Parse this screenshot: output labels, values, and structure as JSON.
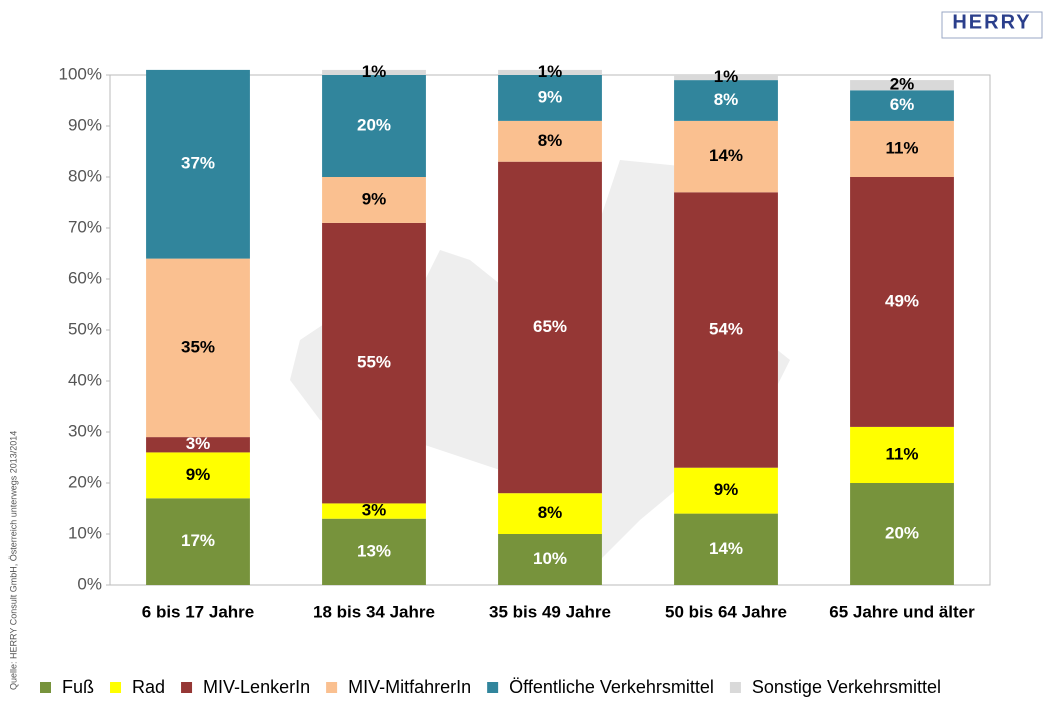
{
  "chart_data": {
    "type": "stacked_bar",
    "source": "Quelle: HERRY Consult GmbH, Österreich unterwegs 2013/2014",
    "logo": "HERRY",
    "categories": [
      "6 bis 17 Jahre",
      "18 bis 34 Jahre",
      "35 bis 49 Jahre",
      "50 bis 64 Jahre",
      "65 Jahre und älter"
    ],
    "series": [
      {
        "name": "Fuß",
        "color": "#77933c",
        "values": [
          17,
          13,
          10,
          14,
          20
        ],
        "value_labels": [
          "17%",
          "13%",
          "10%",
          "14%",
          "20%"
        ]
      },
      {
        "name": "Rad",
        "color": "#ffff00",
        "values": [
          9,
          3,
          8,
          9,
          11
        ],
        "value_labels": [
          "9%",
          "3%",
          "8%",
          "9%",
          "11%"
        ]
      },
      {
        "name": "MIV-LenkerIn",
        "color": "#953735",
        "values": [
          3,
          55,
          65,
          54,
          49
        ],
        "value_labels": [
          "3%",
          "55%",
          "65%",
          "54%",
          "49%"
        ]
      },
      {
        "name": "MIV-MitfahrerIn",
        "color": "#fac090",
        "values": [
          35,
          9,
          8,
          14,
          11
        ],
        "value_labels": [
          "35%",
          "9%",
          "8%",
          "14%",
          "11%"
        ]
      },
      {
        "name": "Öffentliche Verkehrsmittel",
        "color": "#31859c",
        "values": [
          37,
          20,
          9,
          8,
          6
        ],
        "value_labels": [
          "37%",
          "20%",
          "9%",
          "8%",
          "6%"
        ]
      },
      {
        "name": "Sonstige Verkehrsmittel",
        "color": "#d9d9d9",
        "values": [
          null,
          1,
          1,
          1,
          2
        ],
        "value_labels": [
          null,
          "1%",
          "1%",
          "1%",
          "2%"
        ]
      }
    ],
    "ylim": [
      0,
      100
    ],
    "yticks": [
      {
        "value": 0,
        "label": "0%"
      },
      {
        "value": 10,
        "label": "10%"
      },
      {
        "value": 20,
        "label": "20%"
      },
      {
        "value": 30,
        "label": "30%"
      },
      {
        "value": 40,
        "label": "40%"
      },
      {
        "value": 50,
        "label": "50%"
      },
      {
        "value": 60,
        "label": "60%"
      },
      {
        "value": 70,
        "label": "70%"
      },
      {
        "value": 80,
        "label": "80%"
      },
      {
        "value": 90,
        "label": "90%"
      },
      {
        "value": 100,
        "label": "100%"
      }
    ]
  }
}
